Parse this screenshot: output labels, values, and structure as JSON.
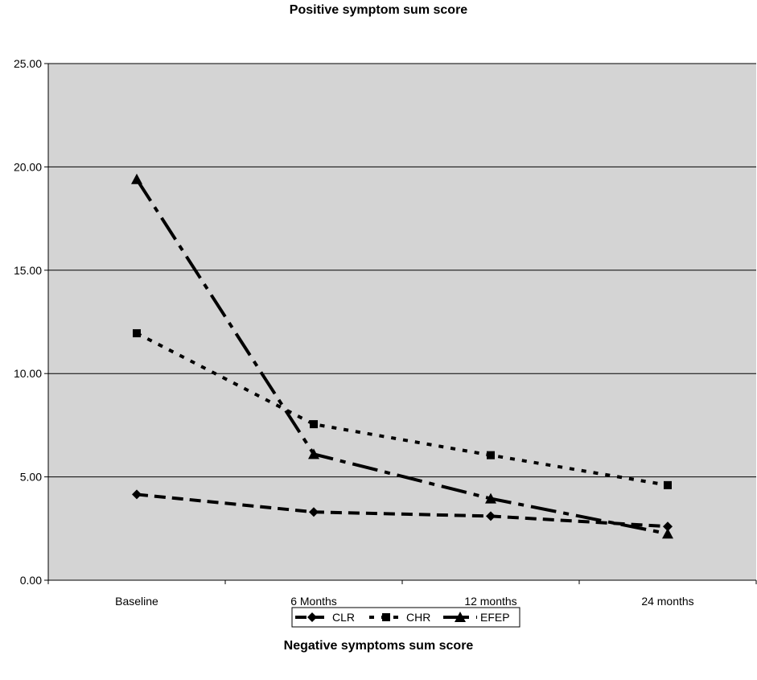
{
  "chart_data": {
    "type": "line",
    "title": "Positive symptom sum score",
    "subtitle": "Negative symptoms sum score",
    "xlabel": "",
    "ylabel": "",
    "categories": [
      "Baseline",
      "6 Months",
      "12 months",
      "24 months"
    ],
    "y_ticks": [
      "0.00",
      "5.00",
      "10.00",
      "15.00",
      "20.00",
      "25.00"
    ],
    "ylim": [
      0,
      25
    ],
    "grid": true,
    "legend_position": "bottom",
    "plot_background": "#d4d4d4",
    "series": [
      {
        "name": "CLR",
        "marker": "diamond",
        "dash": "long-dash",
        "values": [
          4.15,
          3.3,
          3.1,
          2.6
        ]
      },
      {
        "name": "CHR",
        "marker": "square",
        "dash": "dotted",
        "values": [
          11.95,
          7.55,
          6.05,
          4.6
        ]
      },
      {
        "name": "EFEP",
        "marker": "triangle",
        "dash": "dash-dot",
        "values": [
          19.4,
          6.1,
          3.95,
          2.25
        ]
      }
    ]
  }
}
